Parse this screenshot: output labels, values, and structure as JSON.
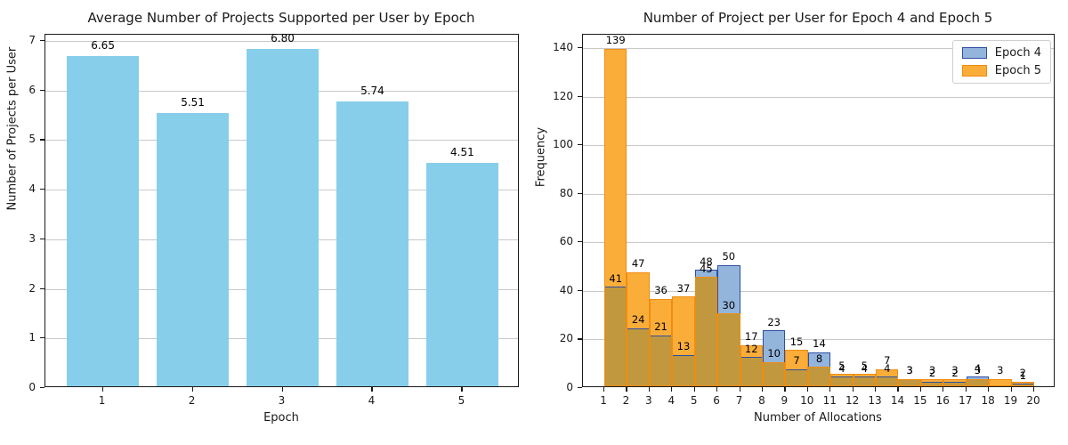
{
  "figure": {
    "background": "#ffffff",
    "grid_color": "#c9c9c9",
    "spine_color": "#1a1a1a"
  },
  "chart_data": [
    {
      "type": "bar",
      "title": "Average Number of Projects Supported per User by Epoch",
      "xlabel": "Epoch",
      "ylabel": "Number of Projects per User",
      "categories": [
        "1",
        "2",
        "3",
        "4",
        "5"
      ],
      "values": [
        6.65,
        5.51,
        6.8,
        5.74,
        4.51
      ],
      "value_labels": [
        "6.65",
        "5.51",
        "6.80",
        "5.74",
        "4.51"
      ],
      "bar_color": "#87ceeb",
      "bar_width_units": 0.8,
      "ylim": [
        0,
        7.125
      ],
      "yticks": [
        0,
        1,
        2,
        3,
        4,
        5,
        6,
        7
      ],
      "grid": true,
      "legend_position": "none"
    },
    {
      "type": "histogram",
      "title": "Number of Project per User for Epoch 4 and Epoch 5",
      "xlabel": "Number of Allocations",
      "ylabel": "Frequency",
      "bin_edges": [
        1,
        2,
        3,
        4,
        5,
        6,
        7,
        8,
        9,
        10,
        11,
        12,
        13,
        14,
        15,
        16,
        17,
        18,
        19,
        20
      ],
      "xticks": [
        1,
        2,
        3,
        4,
        5,
        6,
        7,
        8,
        9,
        10,
        11,
        12,
        13,
        14,
        15,
        16,
        17,
        18,
        19,
        20
      ],
      "series": [
        {
          "name": "Epoch 4",
          "values": [
            41,
            24,
            21,
            13,
            48,
            50,
            12,
            23,
            7,
            14,
            4,
            4,
            4,
            3,
            2,
            2,
            4,
            0,
            1
          ],
          "fill": "#93b5dc",
          "edge": "#2e4ea3"
        },
        {
          "name": "Epoch 5",
          "values": [
            139,
            47,
            36,
            37,
            45,
            30,
            17,
            10,
            15,
            8,
            5,
            5,
            7,
            3,
            3,
            3,
            3,
            3,
            2
          ],
          "fill": "#fbad3a",
          "edge": "#ef8c10"
        }
      ],
      "overlap_fill": "#c1983e",
      "ylim": [
        0,
        145.5
      ],
      "yticks": [
        0,
        20,
        40,
        60,
        80,
        100,
        120,
        140
      ],
      "grid": true,
      "legend_position": "upper right",
      "legend_labels": [
        "Epoch 4",
        "Epoch 5"
      ]
    }
  ]
}
